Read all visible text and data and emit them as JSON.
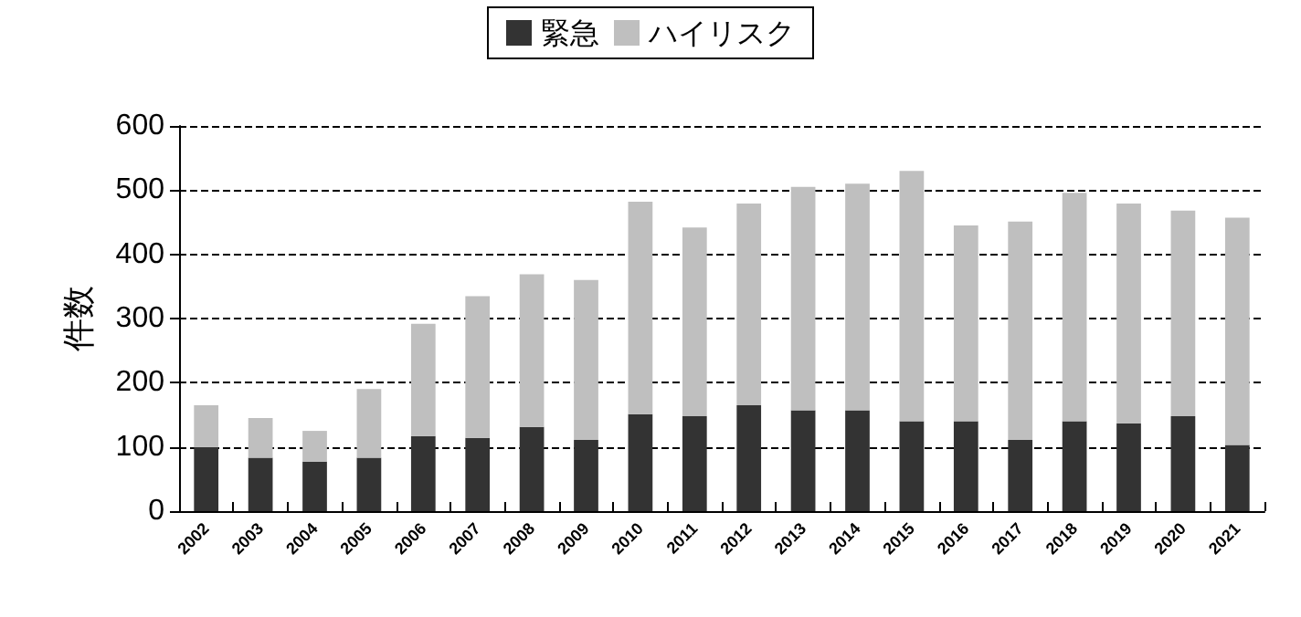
{
  "chart_data": {
    "type": "bar",
    "stacked": true,
    "ylabel": "件数",
    "categories": [
      "2002",
      "2003",
      "2004",
      "2005",
      "2006",
      "2007",
      "2008",
      "2009",
      "2010",
      "2011",
      "2012",
      "2013",
      "2014",
      "2015",
      "2016",
      "2017",
      "2018",
      "2019",
      "2020",
      "2021"
    ],
    "series": [
      {
        "name": "緊急",
        "color": "#333333",
        "values": [
          100,
          83,
          77,
          83,
          117,
          114,
          131,
          111,
          151,
          148,
          165,
          157,
          157,
          140,
          140,
          111,
          140,
          137,
          148,
          103
        ]
      },
      {
        "name": "ハイリスク",
        "color": "#bfbfbf",
        "values": [
          65,
          62,
          48,
          107,
          175,
          221,
          238,
          249,
          331,
          294,
          314,
          348,
          353,
          390,
          305,
          340,
          356,
          342,
          320,
          354
        ]
      }
    ],
    "ylim": [
      0,
      600
    ],
    "yticks": [
      0,
      100,
      200,
      300,
      400,
      500,
      600
    ],
    "grid": "y",
    "legend": "top"
  }
}
